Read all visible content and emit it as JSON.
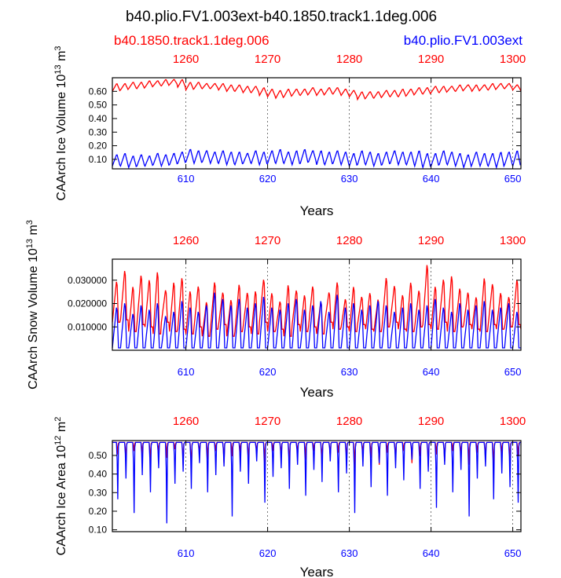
{
  "title": "b40.plio.FV1.003ext-b40.1850.track1.1deg.006",
  "legend": {
    "left": "b40.1850.track1.1deg.006",
    "right": "b40.plio.FV1.003ext",
    "left_color": "#ff0000",
    "right_color": "#0000ff"
  },
  "chart_data": [
    {
      "type": "line",
      "name": "ice-volume",
      "ylabel": "CAArch Ice Volume 10",
      "ylabel_exp": "13",
      "ylabel_unit": " m",
      "ylabel_unit_exp": "3",
      "xlabel": "Years",
      "xlim_bottom": [
        601,
        651
      ],
      "xlim_top": [
        1251,
        1301
      ],
      "ylim": [
        0.03,
        0.7
      ],
      "bottom_ticks": [
        610,
        620,
        630,
        640,
        650
      ],
      "top_ticks": [
        1260,
        1270,
        1280,
        1290,
        1300
      ],
      "ytick_labels": [
        "0.10",
        "0.20",
        "0.30",
        "0.40",
        "0.50",
        "0.60"
      ],
      "ytick_values": [
        0.1,
        0.2,
        0.3,
        0.4,
        0.5,
        0.6
      ],
      "series": [
        {
          "name": "b40.1850.track1.1deg.006",
          "color": "#ff0000",
          "annual_min": [
            0.6,
            0.61,
            0.62,
            0.62,
            0.63,
            0.64,
            0.64,
            0.65,
            0.63,
            0.61,
            0.62,
            0.62,
            0.62,
            0.61,
            0.6,
            0.6,
            0.59,
            0.59,
            0.57,
            0.56,
            0.55,
            0.56,
            0.57,
            0.57,
            0.58,
            0.57,
            0.58,
            0.58,
            0.57,
            0.56,
            0.54,
            0.55,
            0.55,
            0.56,
            0.56,
            0.56,
            0.57,
            0.58,
            0.58,
            0.59,
            0.59,
            0.6,
            0.6,
            0.61,
            0.6,
            0.61,
            0.61,
            0.62,
            0.62,
            0.61,
            0.6
          ],
          "annual_max": [
            0.66,
            0.66,
            0.67,
            0.67,
            0.68,
            0.68,
            0.69,
            0.69,
            0.69,
            0.67,
            0.67,
            0.66,
            0.66,
            0.66,
            0.65,
            0.65,
            0.64,
            0.64,
            0.63,
            0.62,
            0.61,
            0.62,
            0.62,
            0.62,
            0.63,
            0.62,
            0.63,
            0.63,
            0.62,
            0.61,
            0.6,
            0.6,
            0.6,
            0.61,
            0.61,
            0.62,
            0.62,
            0.63,
            0.63,
            0.64,
            0.64,
            0.64,
            0.65,
            0.65,
            0.65,
            0.65,
            0.66,
            0.66,
            0.66,
            0.65,
            0.65
          ]
        },
        {
          "name": "b40.plio.FV1.003ext",
          "color": "#0000ff",
          "annual_min": [
            0.05,
            0.05,
            0.04,
            0.05,
            0.05,
            0.06,
            0.05,
            0.06,
            0.07,
            0.08,
            0.07,
            0.08,
            0.07,
            0.07,
            0.06,
            0.06,
            0.07,
            0.07,
            0.06,
            0.07,
            0.07,
            0.07,
            0.06,
            0.07,
            0.08,
            0.06,
            0.06,
            0.07,
            0.06,
            0.05,
            0.06,
            0.06,
            0.05,
            0.06,
            0.07,
            0.06,
            0.06,
            0.05,
            0.04,
            0.05,
            0.06,
            0.06,
            0.05,
            0.04,
            0.06,
            0.05,
            0.05,
            0.04,
            0.06,
            0.05,
            0.06
          ],
          "annual_max": [
            0.14,
            0.15,
            0.13,
            0.14,
            0.13,
            0.15,
            0.14,
            0.15,
            0.16,
            0.18,
            0.17,
            0.17,
            0.16,
            0.17,
            0.16,
            0.16,
            0.15,
            0.17,
            0.16,
            0.17,
            0.18,
            0.16,
            0.17,
            0.18,
            0.17,
            0.17,
            0.16,
            0.17,
            0.16,
            0.15,
            0.17,
            0.16,
            0.15,
            0.16,
            0.17,
            0.16,
            0.16,
            0.17,
            0.15,
            0.15,
            0.17,
            0.16,
            0.15,
            0.14,
            0.16,
            0.15,
            0.15,
            0.16,
            0.16,
            0.17,
            0.17
          ]
        }
      ]
    },
    {
      "type": "line",
      "name": "snow-volume",
      "ylabel": "CAArch Snow Volume 10",
      "ylabel_exp": "13",
      "ylabel_unit": " m",
      "ylabel_unit_exp": "3",
      "xlabel": "Years",
      "xlim_bottom": [
        601,
        651
      ],
      "xlim_top": [
        1251,
        1301
      ],
      "ylim": [
        0.0,
        0.039
      ],
      "bottom_ticks": [
        610,
        620,
        630,
        640,
        650
      ],
      "top_ticks": [
        1260,
        1270,
        1280,
        1290,
        1300
      ],
      "ytick_labels": [
        "0.010000",
        "0.020000",
        "0.030000"
      ],
      "ytick_values": [
        0.01,
        0.02,
        0.03
      ],
      "series": [
        {
          "name": "b40.1850.track1.1deg.006",
          "color": "#ff0000",
          "annual_min": [
            0.012,
            0.013,
            0.008,
            0.011,
            0.01,
            0.007,
            0.012,
            0.008,
            0.009,
            0.007,
            0.01,
            0.006,
            0.009,
            0.011,
            0.006,
            0.008,
            0.01,
            0.007,
            0.012,
            0.008,
            0.009,
            0.006,
            0.011,
            0.008,
            0.01,
            0.007,
            0.012,
            0.009,
            0.01,
            0.008,
            0.011,
            0.009,
            0.008,
            0.01,
            0.012,
            0.009,
            0.008,
            0.01,
            0.011,
            0.009,
            0.012,
            0.008,
            0.01,
            0.011,
            0.009,
            0.008,
            0.011,
            0.009,
            0.01,
            0.011,
            0.009
          ],
          "annual_max": [
            0.031,
            0.036,
            0.029,
            0.034,
            0.032,
            0.036,
            0.027,
            0.031,
            0.033,
            0.027,
            0.029,
            0.022,
            0.031,
            0.026,
            0.023,
            0.03,
            0.026,
            0.027,
            0.032,
            0.026,
            0.022,
            0.03,
            0.027,
            0.025,
            0.029,
            0.022,
            0.026,
            0.031,
            0.023,
            0.029,
            0.024,
            0.026,
            0.023,
            0.033,
            0.029,
            0.025,
            0.031,
            0.027,
            0.039,
            0.029,
            0.032,
            0.034,
            0.028,
            0.026,
            0.024,
            0.033,
            0.03,
            0.026,
            0.024,
            0.032,
            0.03
          ]
        },
        {
          "name": "b40.plio.FV1.003ext",
          "color": "#0000ff",
          "annual_min": [
            0.001,
            0.001,
            0.001,
            0.001,
            0.001,
            0.001,
            0.001,
            0.001,
            0.001,
            0.001,
            0.001,
            0.001,
            0.001,
            0.001,
            0.001,
            0.001,
            0.001,
            0.001,
            0.001,
            0.001,
            0.001,
            0.001,
            0.001,
            0.001,
            0.001,
            0.001,
            0.001,
            0.001,
            0.001,
            0.001,
            0.001,
            0.001,
            0.001,
            0.001,
            0.001,
            0.001,
            0.001,
            0.001,
            0.001,
            0.001,
            0.001,
            0.001,
            0.001,
            0.001,
            0.001,
            0.001,
            0.001,
            0.001,
            0.001,
            0.001,
            0.001
          ],
          "annual_max": [
            0.02,
            0.022,
            0.017,
            0.021,
            0.019,
            0.022,
            0.016,
            0.018,
            0.023,
            0.02,
            0.018,
            0.021,
            0.027,
            0.024,
            0.021,
            0.024,
            0.02,
            0.022,
            0.025,
            0.02,
            0.019,
            0.022,
            0.024,
            0.019,
            0.021,
            0.023,
            0.018,
            0.026,
            0.02,
            0.022,
            0.019,
            0.021,
            0.023,
            0.021,
            0.018,
            0.02,
            0.022,
            0.019,
            0.021,
            0.024,
            0.02,
            0.018,
            0.022,
            0.019,
            0.021,
            0.023,
            0.019,
            0.02,
            0.022,
            0.018,
            0.021
          ]
        }
      ]
    },
    {
      "type": "line",
      "name": "ice-area",
      "ylabel": "CAArch Ice Area 10",
      "ylabel_exp": "12",
      "ylabel_unit": " m",
      "ylabel_unit_exp": "2",
      "xlabel": "Years",
      "xlim_bottom": [
        601,
        651
      ],
      "xlim_top": [
        1251,
        1301
      ],
      "ylim": [
        0.09,
        0.58
      ],
      "bottom_ticks": [
        610,
        620,
        630,
        640,
        650
      ],
      "top_ticks": [
        1260,
        1270,
        1280,
        1290,
        1300
      ],
      "ytick_labels": [
        "0.10",
        "0.20",
        "0.30",
        "0.40",
        "0.50"
      ],
      "ytick_values": [
        0.1,
        0.2,
        0.3,
        0.4,
        0.5
      ],
      "series": [
        {
          "name": "b40.1850.track1.1deg.006",
          "color": "#ff0000",
          "annual_min": [
            0.5,
            0.46,
            0.52,
            0.49,
            0.45,
            0.51,
            0.48,
            0.53,
            0.44,
            0.41,
            0.5,
            0.47,
            0.52,
            0.45,
            0.49,
            0.51,
            0.46,
            0.5,
            0.44,
            0.52,
            0.48,
            0.43,
            0.5,
            0.47,
            0.52,
            0.45,
            0.49,
            0.51,
            0.46,
            0.42,
            0.5,
            0.48,
            0.44,
            0.51,
            0.47,
            0.52,
            0.45,
            0.49,
            0.43,
            0.5,
            0.46,
            0.52,
            0.48,
            0.44,
            0.51,
            0.47,
            0.42,
            0.5,
            0.45,
            0.49,
            0.43
          ],
          "annual_max": [
            0.57,
            0.57,
            0.57,
            0.57,
            0.57,
            0.57,
            0.57,
            0.57,
            0.57,
            0.57,
            0.57,
            0.57,
            0.57,
            0.57,
            0.57,
            0.57,
            0.57,
            0.57,
            0.57,
            0.57,
            0.57,
            0.57,
            0.57,
            0.57,
            0.57,
            0.57,
            0.57,
            0.57,
            0.57,
            0.57,
            0.57,
            0.57,
            0.57,
            0.57,
            0.57,
            0.57,
            0.57,
            0.57,
            0.57,
            0.57,
            0.57,
            0.57,
            0.57,
            0.57,
            0.57,
            0.57,
            0.57,
            0.57,
            0.57,
            0.57,
            0.57
          ]
        },
        {
          "name": "b40.plio.FV1.003ext",
          "color": "#0000ff",
          "annual_min": [
            0.24,
            0.36,
            0.16,
            0.38,
            0.28,
            0.42,
            0.1,
            0.33,
            0.4,
            0.3,
            0.45,
            0.28,
            0.38,
            0.43,
            0.14,
            0.4,
            0.33,
            0.46,
            0.22,
            0.37,
            0.42,
            0.3,
            0.44,
            0.26,
            0.41,
            0.34,
            0.46,
            0.28,
            0.39,
            0.16,
            0.43,
            0.31,
            0.45,
            0.26,
            0.42,
            0.35,
            0.47,
            0.3,
            0.4,
            0.19,
            0.44,
            0.28,
            0.41,
            0.14,
            0.36,
            0.43,
            0.24,
            0.39,
            0.31,
            0.22,
            0.24
          ],
          "annual_max": [
            0.57,
            0.57,
            0.57,
            0.57,
            0.57,
            0.57,
            0.57,
            0.57,
            0.57,
            0.57,
            0.57,
            0.57,
            0.57,
            0.57,
            0.57,
            0.57,
            0.57,
            0.57,
            0.57,
            0.57,
            0.57,
            0.57,
            0.57,
            0.57,
            0.57,
            0.57,
            0.57,
            0.57,
            0.57,
            0.57,
            0.57,
            0.57,
            0.57,
            0.57,
            0.57,
            0.57,
            0.57,
            0.57,
            0.57,
            0.57,
            0.57,
            0.57,
            0.57,
            0.57,
            0.57,
            0.57,
            0.57,
            0.57,
            0.57,
            0.57,
            0.57
          ]
        }
      ]
    }
  ]
}
